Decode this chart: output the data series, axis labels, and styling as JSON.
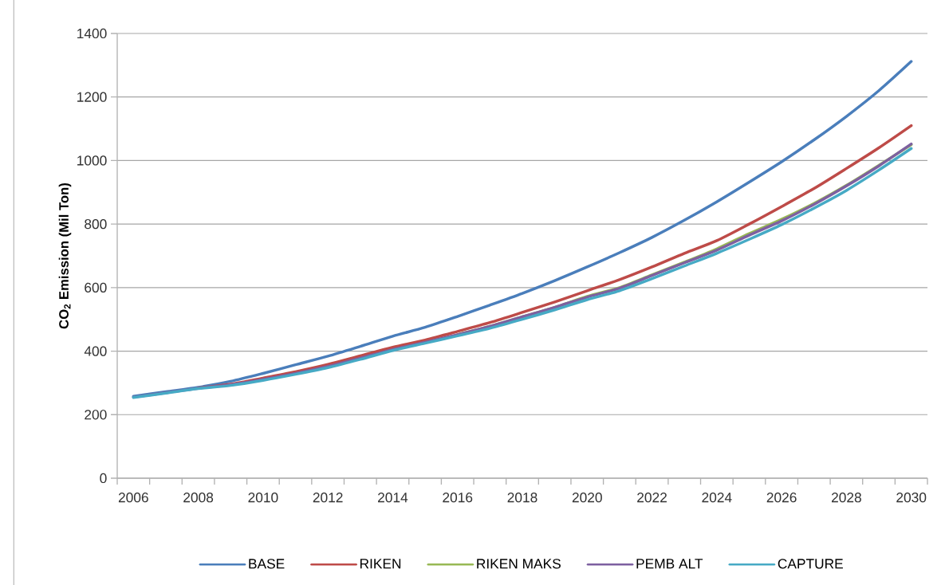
{
  "chart_data": {
    "type": "line",
    "ylabel": "CO$_{2}$ Emission (Mil Ton)",
    "categories": [
      "2006",
      null,
      "2008",
      null,
      "2010",
      null,
      "2012",
      null,
      "2014",
      null,
      "2016",
      null,
      "2018",
      null,
      "2020",
      null,
      "2022",
      null,
      "2024",
      null,
      "2026",
      null,
      "2028",
      null,
      "2030"
    ],
    "ylim": [
      0,
      1400
    ],
    "yticks": [
      0,
      200,
      400,
      600,
      800,
      1000,
      1200,
      1400
    ],
    "grid": "y",
    "legend": "bottom",
    "marker": "none",
    "line_style": "solid",
    "series": [
      {
        "name": "BASE",
        "color": "#4a7ebb",
        "values": [
          258,
          272,
          286,
          305,
          330,
          357,
          384,
          415,
          447,
          475,
          509,
          545,
          582,
          622,
          665,
          710,
          758,
          812,
          870,
          932,
          996,
          1065,
          1139,
          1220,
          1312
        ]
      },
      {
        "name": "RIKEN",
        "color": "#be4b48",
        "values": [
          null,
          null,
          284,
          296,
          315,
          335,
          358,
          385,
          412,
          435,
          462,
          490,
          522,
          555,
          590,
          625,
          665,
          708,
          748,
          800,
          855,
          912,
          975,
          1040,
          1110
        ]
      },
      {
        "name": "RIKEN MAKS",
        "color": "#98b954",
        "values": [
          null,
          null,
          null,
          null,
          null,
          null,
          null,
          null,
          null,
          null,
          452,
          478,
          508,
          538,
          572,
          600,
          640,
          680,
          722,
          770,
          815,
          865,
          922,
          985,
          1050
        ]
      },
      {
        "name": "PEMB ALT",
        "color": "#7d60a0",
        "values": [
          255,
          269,
          283,
          294,
          311,
          330,
          352,
          378,
          405,
          428,
          452,
          478,
          508,
          538,
          570,
          598,
          638,
          678,
          718,
          765,
          810,
          862,
          920,
          983,
          1052
        ]
      },
      {
        "name": "CAPTURE",
        "color": "#46aac5",
        "values": [
          254,
          268,
          282,
          292,
          308,
          327,
          348,
          374,
          402,
          425,
          448,
          472,
          500,
          530,
          562,
          590,
          628,
          668,
          708,
          752,
          798,
          850,
          906,
          970,
          1038
        ]
      }
    ]
  }
}
